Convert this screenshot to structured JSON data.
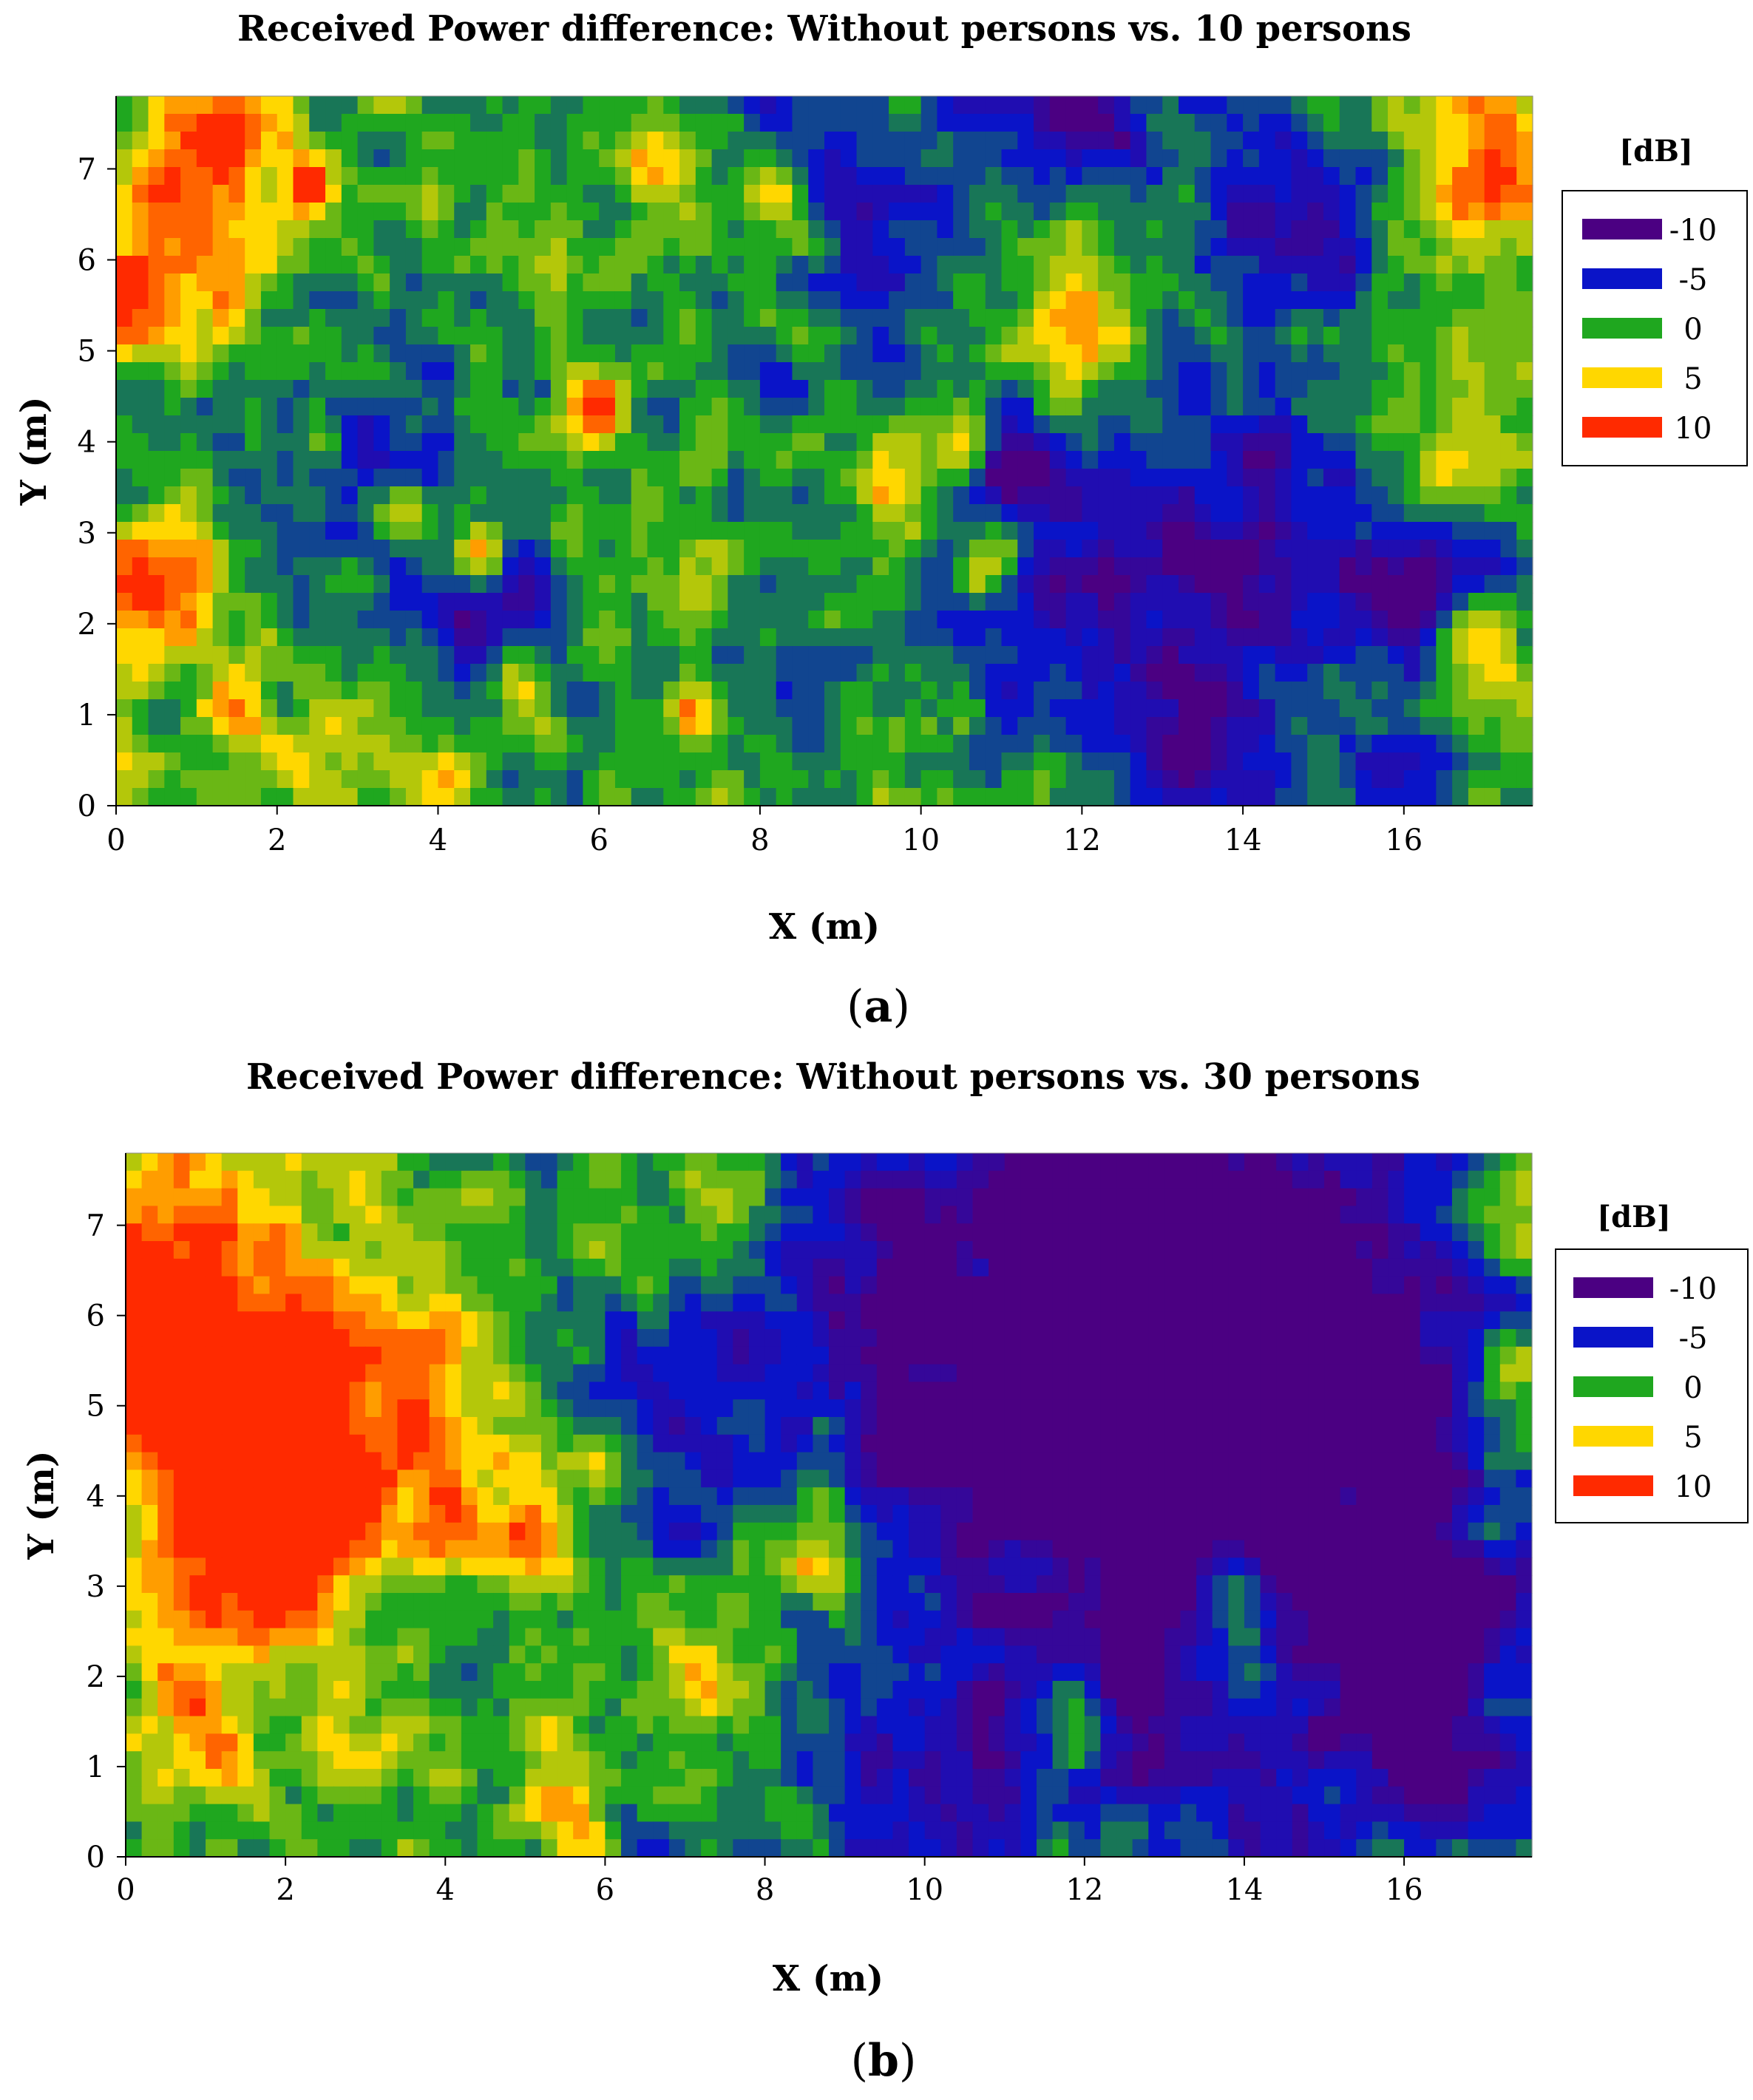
{
  "chart_data": [
    {
      "type": "heatmap",
      "panel_label_prefix": "(",
      "panel_label_letter": "a",
      "panel_label_suffix": ")",
      "title": "Received Power difference: Without persons vs. 10 persons",
      "xlabel": "X (m)",
      "ylabel": "Y (m)",
      "xlim": [
        0,
        17.6
      ],
      "ylim": [
        0,
        7.8
      ],
      "x_ticks": [
        0,
        2,
        4,
        6,
        8,
        10,
        12,
        14,
        16
      ],
      "y_ticks": [
        0,
        1,
        2,
        3,
        4,
        5,
        6,
        7
      ],
      "grid": false,
      "legend": {
        "title": "[dB]",
        "placement": "right",
        "entries": [
          {
            "label": "-10",
            "value": -10,
            "color": "#4b0082"
          },
          {
            "label": "-5",
            "value": -5,
            "color": "#0a14c8"
          },
          {
            "label": "0",
            "value": 0,
            "color": "#1fa71f"
          },
          {
            "label": "5",
            "value": 5,
            "color": "#ffd700"
          },
          {
            "label": "10",
            "value": 10,
            "color": "#ff2a00"
          }
        ]
      },
      "background_value": 0.3,
      "features": [
        {
          "x": 0.7,
          "y": 6.6,
          "r": 0.9,
          "v": 10
        },
        {
          "x": 0.5,
          "y": 2.3,
          "r": 0.6,
          "v": 9
        },
        {
          "x": 1.4,
          "y": 1.0,
          "r": 0.25,
          "v": 10
        },
        {
          "x": 2.4,
          "y": 6.8,
          "r": 0.2,
          "v": 9
        },
        {
          "x": 1.5,
          "y": 7.4,
          "r": 0.35,
          "v": 8
        },
        {
          "x": 6.0,
          "y": 4.4,
          "r": 0.25,
          "v": 10
        },
        {
          "x": 3.6,
          "y": 3.2,
          "r": 0.3,
          "v": 9
        },
        {
          "x": 4.5,
          "y": 2.8,
          "r": 0.2,
          "v": 8
        },
        {
          "x": 5.0,
          "y": 1.2,
          "r": 0.25,
          "v": 9
        },
        {
          "x": 4.0,
          "y": 0.4,
          "r": 0.3,
          "v": 8
        },
        {
          "x": 7.1,
          "y": 1.0,
          "r": 0.2,
          "v": 9
        },
        {
          "x": 10.5,
          "y": 4.0,
          "r": 0.3,
          "v": 10
        },
        {
          "x": 11.8,
          "y": 5.0,
          "r": 0.5,
          "v": 9
        },
        {
          "x": 9.6,
          "y": 3.6,
          "r": 0.3,
          "v": 8
        },
        {
          "x": 10.8,
          "y": 2.6,
          "r": 0.3,
          "v": 9
        },
        {
          "x": 17.0,
          "y": 7.0,
          "r": 0.6,
          "v": 10
        },
        {
          "x": 16.9,
          "y": 1.8,
          "r": 0.35,
          "v": 10
        },
        {
          "x": 8.3,
          "y": 6.7,
          "r": 0.3,
          "v": 8
        },
        {
          "x": 6.8,
          "y": 7.0,
          "r": 0.3,
          "v": 7
        },
        {
          "x": 0.2,
          "y": 5.6,
          "r": 0.3,
          "v": 9
        },
        {
          "x": 3.5,
          "y": 3.5,
          "r": 0.9,
          "v": -5
        },
        {
          "x": 4.5,
          "y": 1.8,
          "r": 0.7,
          "v": -6
        },
        {
          "x": 9.3,
          "y": 6.7,
          "r": 1.1,
          "v": -6
        },
        {
          "x": 12.3,
          "y": 2.4,
          "r": 1.3,
          "v": -7
        },
        {
          "x": 14.4,
          "y": 3.0,
          "r": 1.2,
          "v": -6
        },
        {
          "x": 16.3,
          "y": 2.3,
          "r": 0.6,
          "v": -10
        },
        {
          "x": 14.5,
          "y": 6.6,
          "r": 0.8,
          "v": -8
        },
        {
          "x": 12.0,
          "y": 7.6,
          "r": 0.6,
          "v": -9
        },
        {
          "x": 11.2,
          "y": 3.9,
          "r": 0.4,
          "v": -9
        },
        {
          "x": 8.5,
          "y": 1.4,
          "r": 0.5,
          "v": -5
        },
        {
          "x": 13.5,
          "y": 0.5,
          "r": 0.6,
          "v": -6
        },
        {
          "x": 2.6,
          "y": 0.6,
          "r": 0.4,
          "v": 6
        },
        {
          "x": 15.8,
          "y": 0.3,
          "r": 0.5,
          "v": -7
        },
        {
          "x": 16.5,
          "y": 4.0,
          "r": 0.5,
          "v": 6
        }
      ]
    },
    {
      "type": "heatmap",
      "panel_label_prefix": "(",
      "panel_label_letter": "b",
      "panel_label_suffix": ")",
      "title": "Received Power difference: Without persons vs. 30 persons",
      "xlabel": "X (m)",
      "ylabel": "Y (m)",
      "xlim": [
        0,
        17.6
      ],
      "ylim": [
        0,
        7.8
      ],
      "x_ticks": [
        0,
        2,
        4,
        6,
        8,
        10,
        12,
        14,
        16
      ],
      "y_ticks": [
        0,
        1,
        2,
        3,
        4,
        5,
        6,
        7
      ],
      "grid": false,
      "legend": {
        "title": "[dB]",
        "placement": "right",
        "entries": [
          {
            "label": "-10",
            "value": -10,
            "color": "#4b0082"
          },
          {
            "label": "-5",
            "value": -5,
            "color": "#0a14c8"
          },
          {
            "label": "0",
            "value": 0,
            "color": "#1fa71f"
          },
          {
            "label": "5",
            "value": 5,
            "color": "#ffd700"
          },
          {
            "label": "10",
            "value": 10,
            "color": "#ff2a00"
          }
        ]
      },
      "background_value": -0.5,
      "features": [
        {
          "x": 0.5,
          "y": 6.3,
          "r": 1.2,
          "v": 11
        },
        {
          "x": 2.8,
          "y": 4.5,
          "r": 1.4,
          "v": 10
        },
        {
          "x": 1.3,
          "y": 4.0,
          "r": 0.8,
          "v": 9
        },
        {
          "x": 1.2,
          "y": 2.3,
          "r": 0.8,
          "v": 4
        },
        {
          "x": 0.8,
          "y": 1.1,
          "r": 0.6,
          "v": 6
        },
        {
          "x": 3.3,
          "y": 1.5,
          "r": 0.8,
          "v": 3
        },
        {
          "x": 6.0,
          "y": 4.4,
          "r": 0.3,
          "v": 8
        },
        {
          "x": 5.5,
          "y": 0.8,
          "r": 0.5,
          "v": 5
        },
        {
          "x": 7.3,
          "y": 2.0,
          "r": 0.4,
          "v": 6
        },
        {
          "x": 15.2,
          "y": 5.0,
          "r": 2.4,
          "v": -12
        },
        {
          "x": 12.5,
          "y": 7.2,
          "r": 1.3,
          "v": -11
        },
        {
          "x": 10.5,
          "y": 4.9,
          "r": 1.3,
          "v": -9
        },
        {
          "x": 16.6,
          "y": 1.8,
          "r": 1.0,
          "v": -11
        },
        {
          "x": 6.7,
          "y": 5.0,
          "r": 1.0,
          "v": -6
        },
        {
          "x": 9.0,
          "y": 6.8,
          "r": 1.0,
          "v": -6
        },
        {
          "x": 12.7,
          "y": 2.6,
          "r": 1.2,
          "v": -7
        },
        {
          "x": 10.3,
          "y": 0.9,
          "r": 1.2,
          "v": -7
        },
        {
          "x": 14.2,
          "y": 0.4,
          "r": 0.8,
          "v": -5
        },
        {
          "x": 4.0,
          "y": 2.3,
          "r": 0.8,
          "v": -4
        },
        {
          "x": 17.4,
          "y": 5.3,
          "r": 0.5,
          "v": 10
        },
        {
          "x": 17.4,
          "y": 7.2,
          "r": 0.5,
          "v": 9
        },
        {
          "x": 17.2,
          "y": 2.0,
          "r": 0.5,
          "v": 7
        },
        {
          "x": 17.3,
          "y": 3.8,
          "r": 0.4,
          "v": 5
        },
        {
          "x": 13.8,
          "y": 3.0,
          "r": 0.3,
          "v": 8
        },
        {
          "x": 14.0,
          "y": 2.2,
          "r": 0.5,
          "v": 6
        },
        {
          "x": 11.8,
          "y": 1.5,
          "r": 0.4,
          "v": 8
        },
        {
          "x": 5.0,
          "y": 3.5,
          "r": 0.5,
          "v": 5
        },
        {
          "x": 7.5,
          "y": 7.0,
          "r": 0.6,
          "v": 5
        },
        {
          "x": 8.6,
          "y": 3.5,
          "r": 0.5,
          "v": 5
        }
      ]
    }
  ]
}
